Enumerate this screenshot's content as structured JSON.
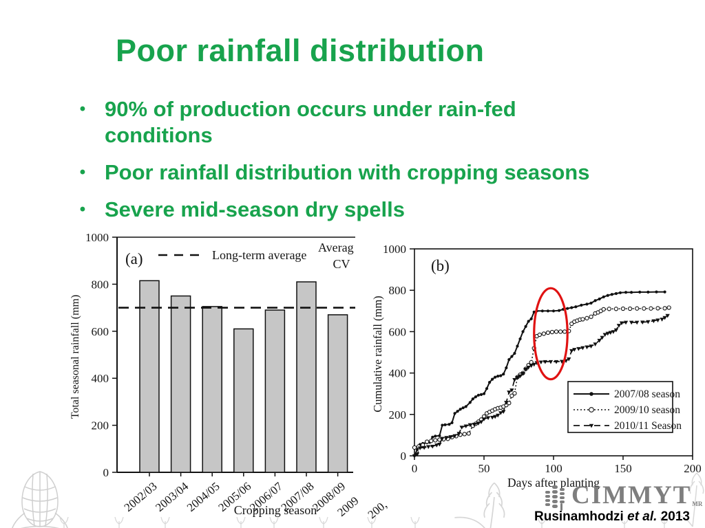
{
  "slide": {
    "title": "Poor rainfall distribution",
    "bullets": [
      {
        "lines": [
          "90% of production occurs under rain-fed",
          "conditions"
        ]
      },
      {
        "lines": [
          "Poor rainfall distribution with cropping seasons"
        ]
      },
      {
        "lines": [
          "Severe mid-season dry spells"
        ]
      }
    ],
    "logo": {
      "text": "CIMMYT",
      "mark": "MR"
    },
    "citation": {
      "author": "Rusinamhodzi",
      "etal": "et al.",
      "year": "2013"
    },
    "colors": {
      "green": "#18a34d",
      "bar_fill": "#c6c6c6",
      "annotation_red": "#e01212",
      "logo_gray": "#7e7e7e",
      "decoration_gray": "#d4d4d4"
    }
  },
  "chart_data": [
    {
      "type": "bar",
      "panel_label": "(a)",
      "ylabel": "Total seasonal rainfall (mm)",
      "xlabel": "Cropping season",
      "categories": [
        "2002/03",
        "2003/04",
        "2004/05",
        "2005/06",
        "2006/07",
        "2007/08",
        "2008/09"
      ],
      "values": [
        815,
        750,
        705,
        610,
        690,
        810,
        670
      ],
      "ylim": [
        0,
        1000
      ],
      "yticks": [
        0,
        200,
        400,
        600,
        800,
        1000
      ],
      "reference_line": {
        "value": 700,
        "label": "Long-term average",
        "style": "dashed"
      },
      "corner_text": [
        "Averag",
        "CV"
      ],
      "clipped_tick_label": "2009",
      "grid": false
    },
    {
      "type": "line",
      "panel_label": "(b)",
      "ylabel": "Cumulative rainfall (mm)",
      "xlabel": "Days after planting",
      "xlim": [
        0,
        200
      ],
      "ylim": [
        0,
        1000
      ],
      "xticks": [
        0,
        50,
        100,
        150,
        200
      ],
      "yticks": [
        0,
        200,
        400,
        600,
        800,
        1000
      ],
      "legend_position": "inside lower-right box",
      "clipped_tick_label": "200,",
      "annotation_ellipse": {
        "center_x_days": 98,
        "center_y_mm": 590,
        "rx_days": 12,
        "ry_mm": 220,
        "color": "#e01212"
      },
      "series": [
        {
          "name": "2007/08 season",
          "marker": "filled-circle",
          "line_style": "solid",
          "points": [
            [
              0,
              0
            ],
            [
              2,
              30
            ],
            [
              4,
              55
            ],
            [
              6,
              60
            ],
            [
              9,
              63
            ],
            [
              11,
              65
            ],
            [
              13,
              90
            ],
            [
              15,
              95
            ],
            [
              18,
              97
            ],
            [
              20,
              148
            ],
            [
              22,
              150
            ],
            [
              25,
              152
            ],
            [
              27,
              160
            ],
            [
              29,
              205
            ],
            [
              31,
              215
            ],
            [
              33,
              225
            ],
            [
              35,
              232
            ],
            [
              37,
              238
            ],
            [
              40,
              258
            ],
            [
              42,
              275
            ],
            [
              44,
              285
            ],
            [
              46,
              293
            ],
            [
              48,
              296
            ],
            [
              50,
              300
            ],
            [
              52,
              325
            ],
            [
              54,
              355
            ],
            [
              56,
              370
            ],
            [
              58,
              380
            ],
            [
              60,
              385
            ],
            [
              62,
              387
            ],
            [
              64,
              395
            ],
            [
              66,
              425
            ],
            [
              68,
              465
            ],
            [
              70,
              480
            ],
            [
              72,
              495
            ],
            [
              74,
              530
            ],
            [
              76,
              565
            ],
            [
              78,
              600
            ],
            [
              80,
              625
            ],
            [
              82,
              650
            ],
            [
              84,
              662
            ],
            [
              86,
              695
            ],
            [
              88,
              700
            ],
            [
              92,
              700
            ],
            [
              96,
              700
            ],
            [
              100,
              700
            ],
            [
              104,
              702
            ],
            [
              107,
              708
            ],
            [
              110,
              712
            ],
            [
              113,
              716
            ],
            [
              116,
              720
            ],
            [
              120,
              728
            ],
            [
              124,
              733
            ],
            [
              127,
              738
            ],
            [
              130,
              750
            ],
            [
              133,
              758
            ],
            [
              136,
              768
            ],
            [
              139,
              775
            ],
            [
              142,
              780
            ],
            [
              145,
              784
            ],
            [
              148,
              788
            ],
            [
              152,
              790
            ],
            [
              156,
              790
            ],
            [
              162,
              791
            ],
            [
              168,
              791
            ],
            [
              174,
              792
            ],
            [
              180,
              792
            ]
          ]
        },
        {
          "name": "2009/10 season",
          "marker": "open-circle",
          "line_style": "dotted",
          "points": [
            [
              0,
              40
            ],
            [
              3,
              45
            ],
            [
              6,
              52
            ],
            [
              9,
              68
            ],
            [
              12,
              72
            ],
            [
              15,
              75
            ],
            [
              18,
              78
            ],
            [
              21,
              80
            ],
            [
              24,
              82
            ],
            [
              27,
              90
            ],
            [
              30,
              95
            ],
            [
              33,
              102
            ],
            [
              36,
              105
            ],
            [
              39,
              108
            ],
            [
              42,
              145
            ],
            [
              44,
              155
            ],
            [
              46,
              165
            ],
            [
              48,
              175
            ],
            [
              50,
              190
            ],
            [
              52,
              205
            ],
            [
              54,
              212
            ],
            [
              56,
              218
            ],
            [
              58,
              225
            ],
            [
              60,
              230
            ],
            [
              62,
              233
            ],
            [
              64,
              238
            ],
            [
              66,
              245
            ],
            [
              68,
              255
            ],
            [
              70,
              290
            ],
            [
              72,
              302
            ],
            [
              74,
              380
            ],
            [
              76,
              392
            ],
            [
              78,
              400
            ],
            [
              80,
              420
            ],
            [
              82,
              438
            ],
            [
              84,
              452
            ],
            [
              86,
              520
            ],
            [
              88,
              578
            ],
            [
              90,
              585
            ],
            [
              93,
              590
            ],
            [
              96,
              595
            ],
            [
              99,
              598
            ],
            [
              102,
              600
            ],
            [
              105,
              600
            ],
            [
              108,
              600
            ],
            [
              111,
              603
            ],
            [
              113,
              638
            ],
            [
              115,
              648
            ],
            [
              117,
              653
            ],
            [
              119,
              658
            ],
            [
              121,
              660
            ],
            [
              124,
              665
            ],
            [
              127,
              672
            ],
            [
              130,
              688
            ],
            [
              132,
              693
            ],
            [
              134,
              700
            ],
            [
              136,
              708
            ],
            [
              140,
              710
            ],
            [
              145,
              710
            ],
            [
              150,
              711
            ],
            [
              155,
              711
            ],
            [
              160,
              712
            ],
            [
              165,
              712
            ],
            [
              170,
              712
            ],
            [
              175,
              713
            ],
            [
              180,
              713
            ],
            [
              183,
              716
            ]
          ]
        },
        {
          "name": "2010/11 Season",
          "marker": "filled-triangle",
          "line_style": "dashed",
          "points": [
            [
              0,
              0
            ],
            [
              2,
              8
            ],
            [
              4,
              38
            ],
            [
              7,
              40
            ],
            [
              10,
              44
            ],
            [
              13,
              46
            ],
            [
              16,
              52
            ],
            [
              18,
              56
            ],
            [
              20,
              84
            ],
            [
              23,
              88
            ],
            [
              26,
              92
            ],
            [
              29,
              97
            ],
            [
              32,
              108
            ],
            [
              34,
              138
            ],
            [
              37,
              144
            ],
            [
              40,
              150
            ],
            [
              43,
              152
            ],
            [
              46,
              158
            ],
            [
              48,
              164
            ],
            [
              50,
              178
            ],
            [
              53,
              184
            ],
            [
              56,
              186
            ],
            [
              58,
              190
            ],
            [
              60,
              196
            ],
            [
              62,
              208
            ],
            [
              64,
              214
            ],
            [
              66,
              258
            ],
            [
              68,
              308
            ],
            [
              70,
              318
            ],
            [
              72,
              368
            ],
            [
              74,
              378
            ],
            [
              76,
              386
            ],
            [
              78,
              398
            ],
            [
              80,
              418
            ],
            [
              82,
              428
            ],
            [
              84,
              436
            ],
            [
              86,
              442
            ],
            [
              88,
              450
            ],
            [
              91,
              453
            ],
            [
              94,
              455
            ],
            [
              98,
              455
            ],
            [
              102,
              455
            ],
            [
              106,
              456
            ],
            [
              109,
              460
            ],
            [
              111,
              468
            ],
            [
              113,
              508
            ],
            [
              115,
              514
            ],
            [
              118,
              518
            ],
            [
              121,
              522
            ],
            [
              124,
              526
            ],
            [
              127,
              530
            ],
            [
              130,
              540
            ],
            [
              133,
              558
            ],
            [
              135,
              572
            ],
            [
              137,
              586
            ],
            [
              139,
              592
            ],
            [
              141,
              596
            ],
            [
              143,
              600
            ],
            [
              145,
              608
            ],
            [
              147,
              630
            ],
            [
              149,
              642
            ],
            [
              152,
              645
            ],
            [
              156,
              645
            ],
            [
              160,
              645
            ],
            [
              164,
              646
            ],
            [
              168,
              648
            ],
            [
              172,
              652
            ],
            [
              175,
              656
            ],
            [
              178,
              660
            ],
            [
              180,
              668
            ],
            [
              182,
              678
            ]
          ]
        }
      ]
    }
  ]
}
